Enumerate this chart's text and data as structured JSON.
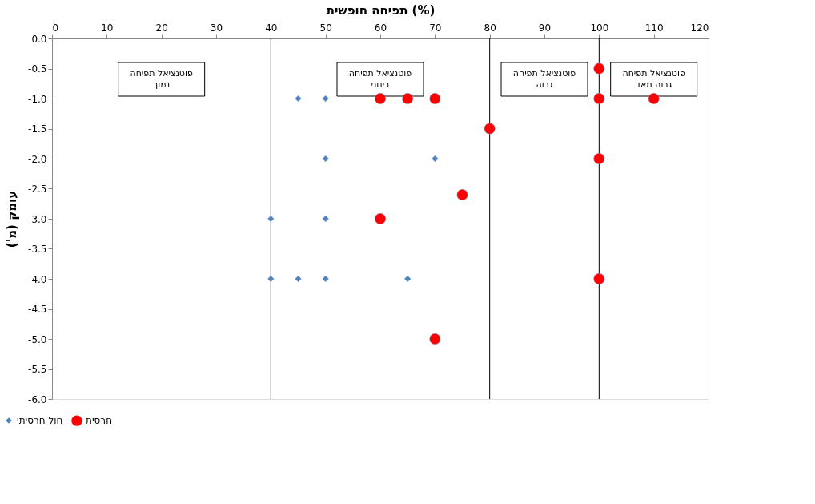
{
  "chart_data": {
    "type": "scatter",
    "xlabel": "תפיחה חופשית (%)",
    "ylabel": "עומק (מ')",
    "xlim": [
      0,
      120
    ],
    "xticks": [
      0,
      10,
      20,
      30,
      40,
      50,
      60,
      70,
      80,
      90,
      100,
      110,
      120
    ],
    "ylim": [
      -6,
      0
    ],
    "yticks": [
      {
        "value": -6,
        "label": "-6.0"
      },
      {
        "value": -5.5,
        "label": "-5.5"
      },
      {
        "value": -5,
        "label": "-5.0"
      },
      {
        "value": -4.5,
        "label": "-4.5"
      },
      {
        "value": -4,
        "label": "-4.0"
      },
      {
        "value": -3.5,
        "label": "-3.5"
      },
      {
        "value": -3,
        "label": "-3.0"
      },
      {
        "value": -2.5,
        "label": "-2.5"
      },
      {
        "value": -2,
        "label": "-2.0"
      },
      {
        "value": -1.5,
        "label": "-1.5"
      },
      {
        "value": -1,
        "label": "-1.0"
      },
      {
        "value": -0.5,
        "label": "-0.5"
      },
      {
        "value": 0,
        "label": "0.0"
      }
    ],
    "series": [
      {
        "name": "חול חרסיתי",
        "color": "#4f81bd",
        "marker": "diamond",
        "x": [
          45,
          50,
          50,
          70,
          40,
          50,
          40,
          45,
          50,
          65
        ],
        "values": [
          -1,
          -1,
          -2,
          -2,
          -3,
          -3,
          -4,
          -4,
          -4,
          -4
        ]
      },
      {
        "name": "חרסית",
        "color": "#ff0000",
        "marker": "circle",
        "x": [
          100,
          60,
          65,
          70,
          100,
          110,
          80,
          100,
          75,
          60,
          100,
          70
        ],
        "values": [
          -0.5,
          -1,
          -1,
          -1,
          -1,
          -1,
          -1.5,
          -2,
          -2.6,
          -3,
          -4,
          -5
        ]
      }
    ],
    "ref_lines": [
      {
        "axis": "x",
        "value": 40,
        "label": null,
        "color": "#000000"
      },
      {
        "axis": "x",
        "value": 80,
        "label": null,
        "color": "#000000"
      },
      {
        "axis": "x",
        "value": 100,
        "label": null,
        "color": "#000000"
      }
    ],
    "annotations": [
      "פוטנציאל תפיחה\nנמוך",
      "פוטנציאל תפיחה\nבינוני",
      "פוטנציאל תפיחה\nגבוה",
      "פוטנציאל תפיחה\nגבוה מאד"
    ],
    "legend": "bottom left",
    "grid": false
  }
}
